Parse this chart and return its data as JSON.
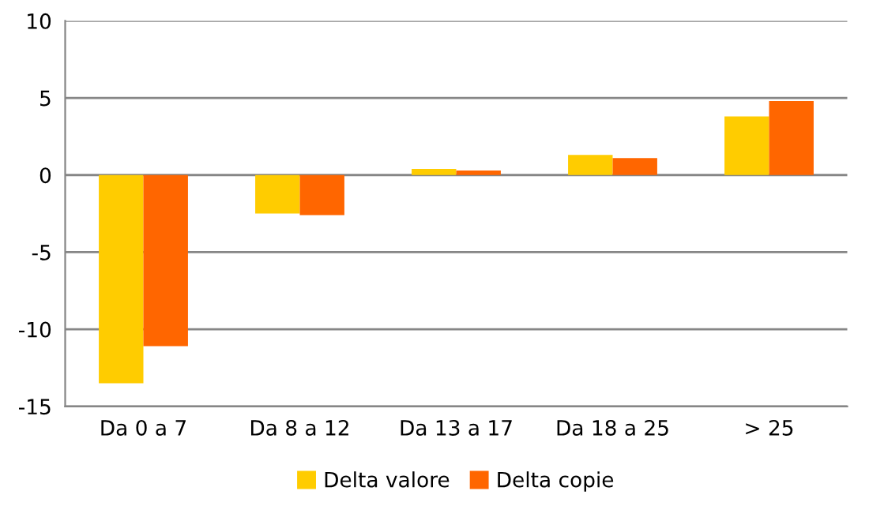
{
  "chart_data": {
    "type": "bar",
    "categories": [
      "Da 0 a 7",
      "Da 8 a 12",
      "Da 13 a 17",
      "Da 18 a 25",
      "> 25"
    ],
    "series": [
      {
        "name": "Delta valore",
        "color": "#ffcc00",
        "values": [
          -13.5,
          -2.5,
          0.4,
          1.3,
          3.8
        ]
      },
      {
        "name": "Delta copie",
        "color": "#ff6600",
        "values": [
          -11.1,
          -2.6,
          0.3,
          1.1,
          4.8
        ]
      }
    ],
    "ylim": [
      -15,
      10
    ],
    "yticks": [
      -15,
      -10,
      -5,
      0,
      5,
      10
    ],
    "grid": "y",
    "legend": "bottom"
  }
}
